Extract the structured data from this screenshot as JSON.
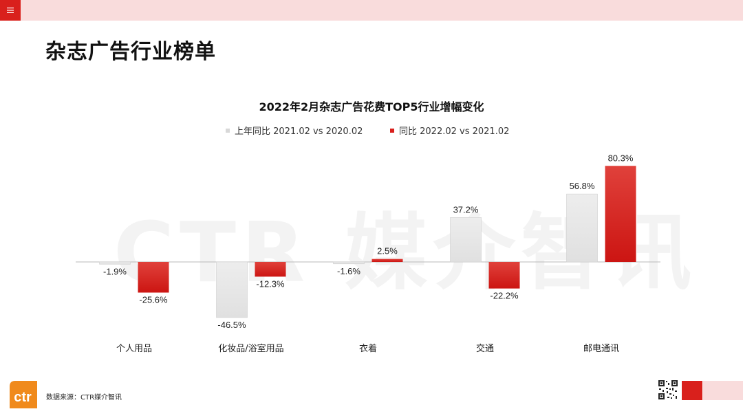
{
  "header": {
    "menu_icon": "hamburger-menu-icon",
    "bar_color": "#f9dcdc",
    "accent": "#d9201c"
  },
  "page": {
    "title": "杂志广告行业榜单"
  },
  "watermark": "CTR 媒介智讯",
  "chart_data": {
    "type": "bar",
    "title": "2022年2月杂志广告花费TOP5行业增幅变化",
    "categories": [
      "个人用品",
      "化妆品/浴室用品",
      "衣着",
      "交通",
      "邮电通讯"
    ],
    "series": [
      {
        "name": "上年同比 2021.02 vs 2020.02",
        "color": "#e6e6e6",
        "values": [
          -1.9,
          -46.5,
          -1.6,
          37.2,
          56.8
        ]
      },
      {
        "name": "同比 2022.02 vs 2021.02",
        "color": "#d9201c",
        "values": [
          -25.6,
          -12.3,
          2.5,
          -22.2,
          80.3
        ]
      }
    ],
    "value_suffix": "%",
    "legend": "top",
    "grid": false
  },
  "footer": {
    "logo_text": "ctr",
    "logo_mark": "®",
    "source": "数据来源：CTR媒介智讯",
    "qr_icon": "qr-code-icon"
  }
}
